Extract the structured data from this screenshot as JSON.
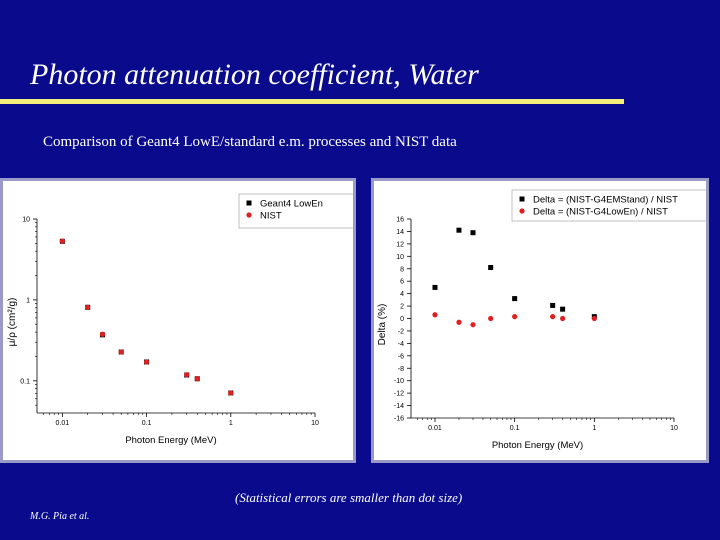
{
  "slide": {
    "title": "Photon attenuation coefficient, Water",
    "subtitle": "Comparison of Geant4 LowE/standard e.m. processes and NIST data",
    "note": "(Statistical errors are smaller than dot size)",
    "author": "M.G. Pia et al."
  },
  "colors": {
    "background": "#0a0a8c",
    "rule": "#f5f07a",
    "series_black": "#000000",
    "series_red": "#e02020"
  },
  "chart_data": [
    {
      "type": "scatter",
      "xscale": "log",
      "yscale": "log",
      "xlim": [
        0.005,
        10
      ],
      "ylim": [
        0.04,
        10
      ],
      "xlabel": "Photon Energy (MeV)",
      "ylabel": "μ/ρ (cm²/g)",
      "x_ticks": [
        0.01,
        0.1,
        1,
        10
      ],
      "x_tick_labels": [
        "0.01",
        "0.1",
        "1",
        "10"
      ],
      "y_ticks": [
        0.1,
        1,
        10
      ],
      "y_tick_labels": [
        "0.1",
        "1",
        "10"
      ],
      "legend_position": "top-right",
      "series": [
        {
          "name": "Geant4 LowEn",
          "color": "#000000",
          "marker": "square",
          "x": [
            0.01,
            0.02,
            0.03,
            0.05,
            0.1,
            0.3,
            0.4,
            1.0
          ],
          "y": [
            5.3,
            0.81,
            0.37,
            0.227,
            0.171,
            0.118,
            0.106,
            0.0707
          ]
        },
        {
          "name": "NIST",
          "color": "#e02020",
          "marker": "circle",
          "x": [
            0.01,
            0.02,
            0.03,
            0.05,
            0.1,
            0.3,
            0.4,
            1.0
          ],
          "y": [
            5.33,
            0.81,
            0.376,
            0.227,
            0.171,
            0.119,
            0.106,
            0.0707
          ]
        }
      ]
    },
    {
      "type": "scatter",
      "xscale": "log",
      "yscale": "linear",
      "xlim": [
        0.005,
        10
      ],
      "ylim": [
        -16,
        16
      ],
      "xlabel": "Photon Energy (MeV)",
      "ylabel": "Delta (%)",
      "x_ticks": [
        0.01,
        0.1,
        1,
        10
      ],
      "x_tick_labels": [
        "0.01",
        "0.1",
        "1",
        "10"
      ],
      "y_ticks": [
        16,
        14,
        12,
        10,
        8,
        6,
        4,
        2,
        0,
        -2,
        -4,
        -6,
        -8,
        -10,
        -12,
        -14,
        -16
      ],
      "y_tick_labels": [
        "16",
        "14",
        "12",
        "10",
        "8",
        "6",
        "4",
        "2",
        "0",
        "-2",
        "-4",
        "-6",
        "-8",
        "-10",
        "-12",
        "-14",
        "-16"
      ],
      "legend_position": "top-right",
      "series": [
        {
          "name": "Delta = (NIST-G4EMStand) / NIST",
          "color": "#000000",
          "marker": "square",
          "x": [
            0.01,
            0.02,
            0.03,
            0.05,
            0.1,
            0.3,
            0.4,
            1.0
          ],
          "y": [
            5.0,
            14.2,
            13.8,
            8.2,
            3.2,
            2.1,
            1.5,
            0.3
          ]
        },
        {
          "name": "Delta = (NIST-G4LowEn) / NIST",
          "color": "#e02020",
          "marker": "circle",
          "x": [
            0.01,
            0.02,
            0.03,
            0.05,
            0.1,
            0.3,
            0.4,
            1.0
          ],
          "y": [
            0.6,
            -0.6,
            -1.0,
            0.0,
            0.3,
            0.3,
            0.0,
            0.0
          ]
        }
      ]
    }
  ]
}
